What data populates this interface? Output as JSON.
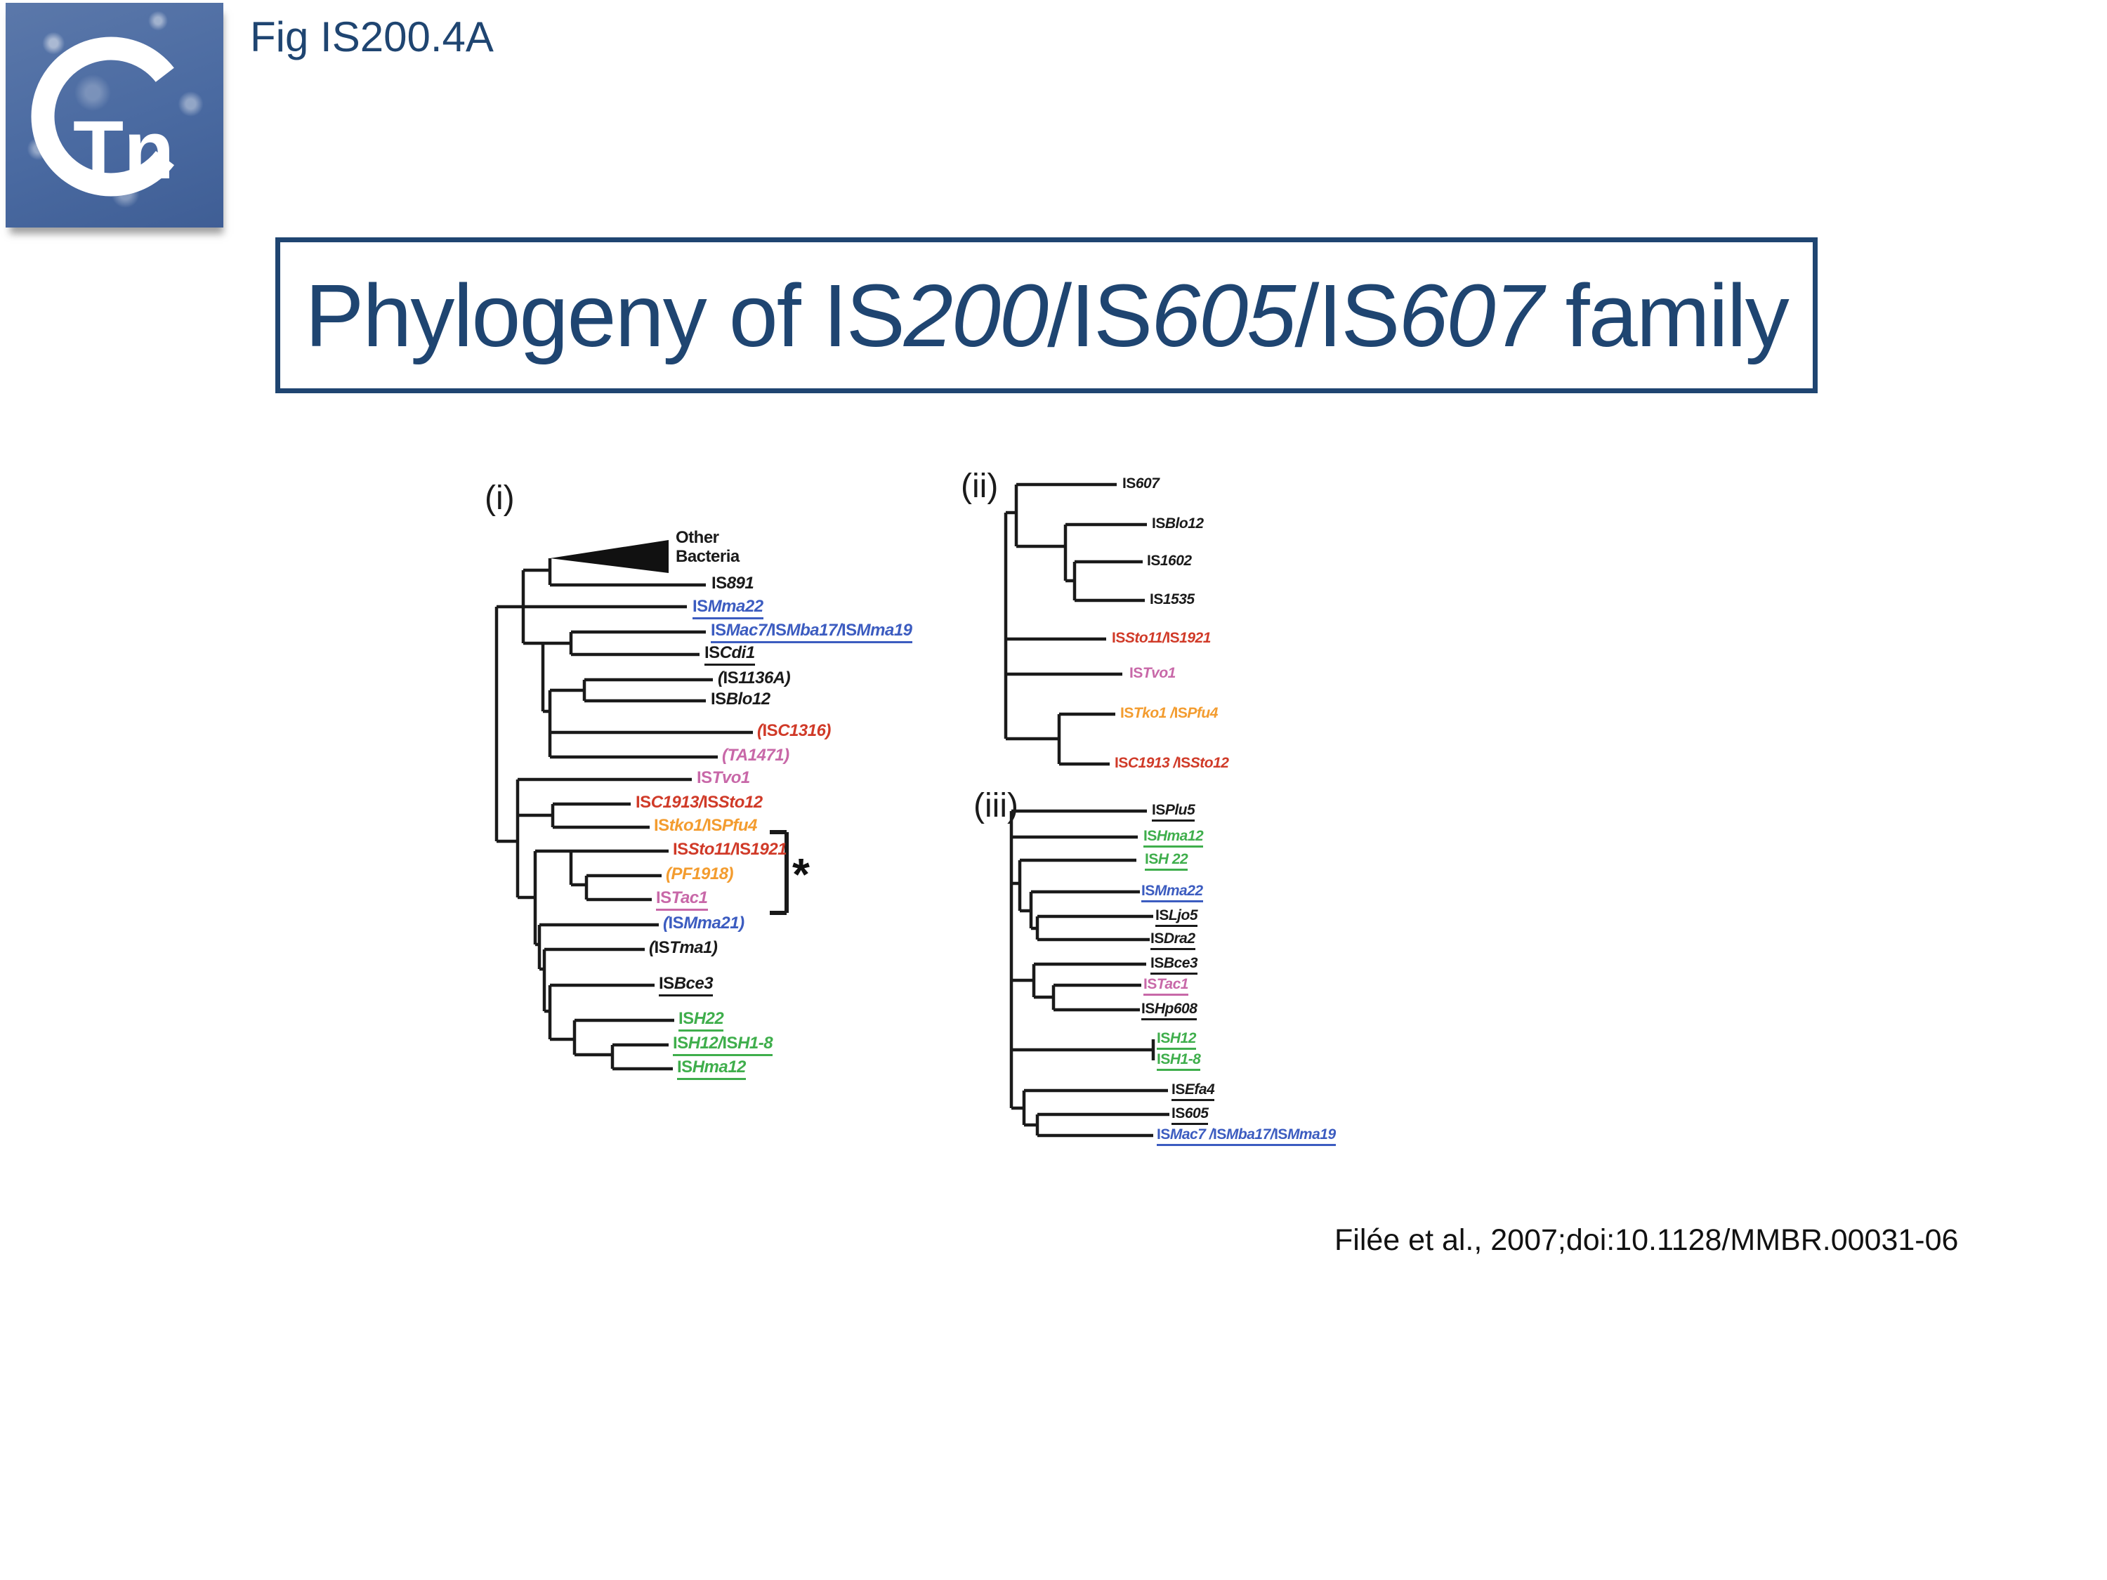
{
  "logo": {
    "ring_letter": "C",
    "letters": "Tn"
  },
  "fig_label": "Fig IS200.4A",
  "title": {
    "full": "Phylogeny of IS200/IS605/IS607 family",
    "segments": [
      {
        "text": "Phylogeny of IS",
        "italic": false
      },
      {
        "text": "200",
        "italic": true
      },
      {
        "text": "/IS",
        "italic": false
      },
      {
        "text": "605",
        "italic": true
      },
      {
        "text": "/IS",
        "italic": false
      },
      {
        "text": "607",
        "italic": true
      },
      {
        "text": " family",
        "italic": false
      }
    ]
  },
  "citation": "Filée et al., 2007;doi:10.1128/MMBR.00031-06",
  "colors": {
    "black": "#1a1a1a",
    "blue": "#3c5cc0",
    "red": "#d03a28",
    "orange": "#f39c2f",
    "pink": "#c868a8",
    "green": "#3fae4c",
    "navy": "#1f4571"
  },
  "trees": {
    "i": {
      "label": "(i)",
      "bracket_note": "*",
      "tips": [
        {
          "label": "Other Bacteria",
          "color": "black",
          "underline": false,
          "plain": true
        },
        {
          "label": "IS891",
          "color": "black",
          "underline": false
        },
        {
          "label": "ISMma22",
          "color": "blue",
          "underline": true
        },
        {
          "label": "ISMac7/ISMba17/ISMma19",
          "color": "blue",
          "underline": true
        },
        {
          "label": "ISCdi1",
          "color": "black",
          "underline": true
        },
        {
          "label": "(IS1136A)",
          "color": "black",
          "underline": false
        },
        {
          "label": "ISBlo12",
          "color": "black",
          "underline": false
        },
        {
          "label": "(ISC1316)",
          "color": "red",
          "underline": false
        },
        {
          "label": "(TA1471)",
          "color": "pink",
          "underline": false
        },
        {
          "label": "ISTvo1",
          "color": "pink",
          "underline": false
        },
        {
          "label": "ISC1913/ISSto12",
          "color": "red",
          "underline": false
        },
        {
          "label": "IStko1/ISPfu4",
          "color": "orange",
          "underline": false
        },
        {
          "label": "ISSto11/IS1921",
          "color": "red",
          "underline": false
        },
        {
          "label": "(PF1918)",
          "color": "orange",
          "underline": false
        },
        {
          "label": "ISTac1",
          "color": "pink",
          "underline": true
        },
        {
          "label": "(ISMma21)",
          "color": "blue",
          "underline": false
        },
        {
          "label": "(ISTma1)",
          "color": "black",
          "underline": false
        },
        {
          "label": "ISBce3",
          "color": "black",
          "underline": true
        },
        {
          "label": "ISH22",
          "color": "green",
          "underline": true
        },
        {
          "label": "ISH12/ISH1-8",
          "color": "green",
          "underline": true
        },
        {
          "label": "ISHma12",
          "color": "green",
          "underline": true
        }
      ]
    },
    "ii": {
      "label": "(ii)",
      "tips": [
        {
          "label": "IS607",
          "color": "black",
          "underline": false
        },
        {
          "label": "ISBlo12",
          "color": "black",
          "underline": false
        },
        {
          "label": "IS1602",
          "color": "black",
          "underline": false
        },
        {
          "label": "IS1535",
          "color": "black",
          "underline": false
        },
        {
          "label": "ISSto11/IS1921",
          "color": "red",
          "underline": false
        },
        {
          "label": "ISTvo1",
          "color": "pink",
          "underline": false
        },
        {
          "label": "ISTko1 /ISPfu4",
          "color": "orange",
          "underline": false
        },
        {
          "label": "ISC1913 /ISSto12",
          "color": "red",
          "underline": false
        }
      ]
    },
    "iii": {
      "label": "(iii)",
      "tips": [
        {
          "label": "ISPlu5",
          "color": "black",
          "underline": true
        },
        {
          "label": "ISHma12",
          "color": "green",
          "underline": true
        },
        {
          "label": "ISH 22",
          "color": "green",
          "underline": true
        },
        {
          "label": "ISMma22",
          "color": "blue",
          "underline": true
        },
        {
          "label": "ISLjo5",
          "color": "black",
          "underline": true
        },
        {
          "label": "ISDra2",
          "color": "black",
          "underline": true
        },
        {
          "label": "ISBce3",
          "color": "black",
          "underline": true
        },
        {
          "label": "ISTac1",
          "color": "pink",
          "underline": true
        },
        {
          "label": "ISHp608",
          "color": "black",
          "underline": true
        },
        {
          "label": "ISH12",
          "color": "green",
          "underline": true
        },
        {
          "label": "ISH1-8",
          "color": "green",
          "underline": true
        },
        {
          "label": "ISEfa4",
          "color": "black",
          "underline": true
        },
        {
          "label": "IS605",
          "color": "black",
          "underline": true
        },
        {
          "label": "ISMac7 /ISMba17/ISMma19",
          "color": "blue",
          "underline": true
        }
      ]
    }
  }
}
